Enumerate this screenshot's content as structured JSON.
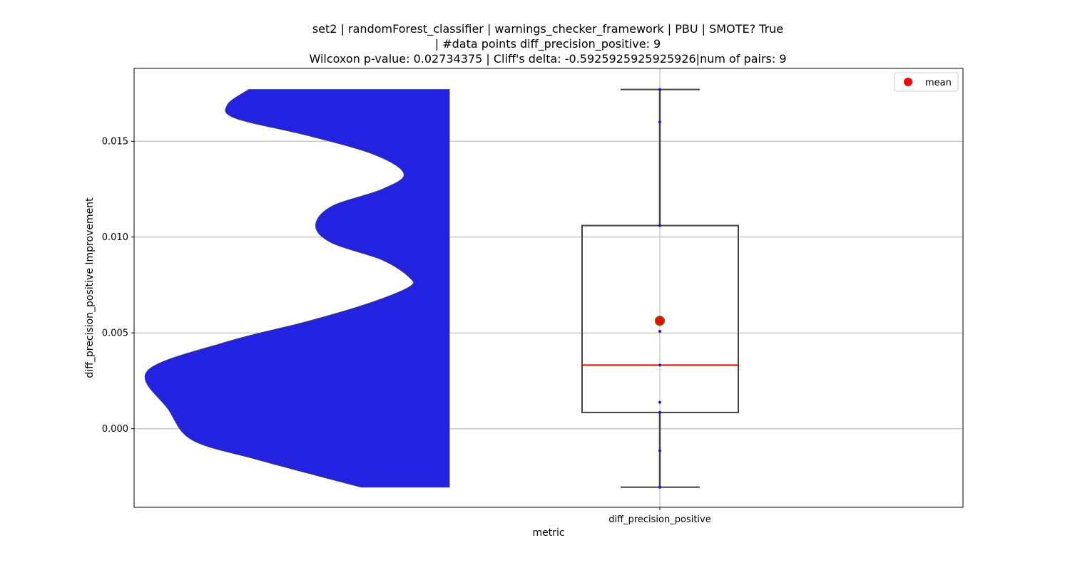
{
  "chart_data": {
    "type": "violin+box",
    "title_lines": [
      "set2 | randomForest_classifier | warnings_checker_framework | PBU | SMOTE? True",
      "| #data points diff_precision_positive: 9",
      "Wilcoxon p-value: 0.02734375 | Cliff's delta: -0.5925925925925926|num of pairs: 9"
    ],
    "xlabel": "metric",
    "ylabel": "diff_precision_positive Improvement",
    "categories": [
      "diff_precision_positive"
    ],
    "ylim": [
      -0.0041,
      0.0188
    ],
    "yticks": [
      0.0,
      0.005,
      0.01,
      0.015
    ],
    "ytick_labels": [
      "0.000",
      "0.005",
      "0.010",
      "0.015"
    ],
    "grid": true,
    "legend": {
      "position": "top-right",
      "entries": [
        {
          "label": "mean",
          "color": "#ff0000"
        }
      ]
    },
    "points": [
      -0.00305,
      -0.00115,
      0.00085,
      0.00138,
      0.00332,
      0.00508,
      0.0106,
      0.016,
      0.0177
    ],
    "box": {
      "whisker_low": -0.00305,
      "q1": 0.00085,
      "median": 0.00332,
      "q3": 0.0106,
      "whisker_high": 0.0177
    },
    "mean": 0.00563,
    "violin_profile": [
      [
        -0.00305,
        0.33
      ],
      [
        -0.0025,
        0.48
      ],
      [
        -0.0016,
        0.72
      ],
      [
        -0.0006,
        0.96
      ],
      [
        0.001,
        1.05
      ],
      [
        0.003,
        1.13
      ],
      [
        0.0045,
        0.84
      ],
      [
        0.0056,
        0.53
      ],
      [
        0.0065,
        0.31
      ],
      [
        0.0074,
        0.15
      ],
      [
        0.0079,
        0.15
      ],
      [
        0.0088,
        0.25
      ],
      [
        0.0097,
        0.44
      ],
      [
        0.0106,
        0.5
      ],
      [
        0.0116,
        0.44
      ],
      [
        0.0125,
        0.25
      ],
      [
        0.0133,
        0.17
      ],
      [
        0.0143,
        0.28
      ],
      [
        0.0153,
        0.53
      ],
      [
        0.0162,
        0.8
      ],
      [
        0.0169,
        0.83
      ],
      [
        0.0177,
        0.75
      ]
    ],
    "colors": {
      "violin": "#2222e0",
      "median": "#ff0000",
      "mean": "#ff0000",
      "mean_edge": "#4a8a2a",
      "box": "#444444",
      "points": "#1a1acc",
      "grid": "#b0b0b0"
    }
  }
}
